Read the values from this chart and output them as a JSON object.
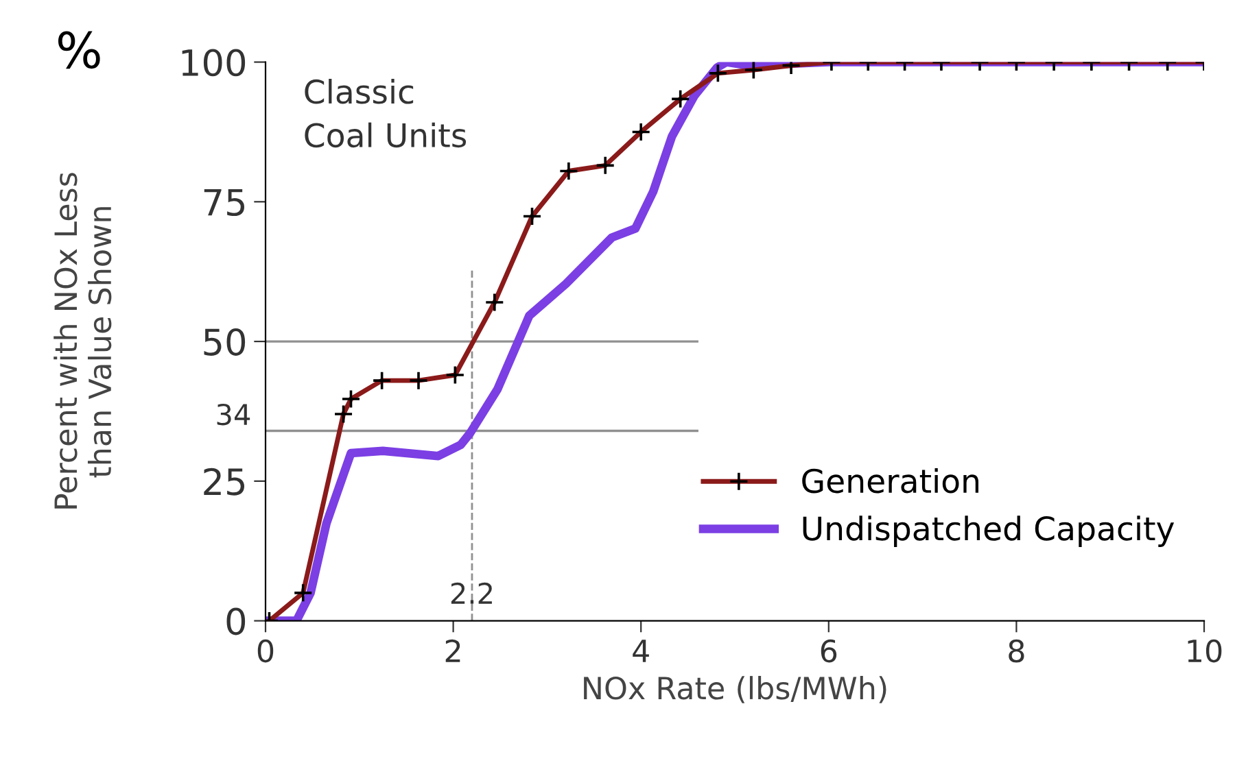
{
  "chart_data": {
    "type": "line",
    "xlabel": "NOx Rate (lbs/MWh)",
    "ylabel": "Percent with NOx Less\nthan Value Shown",
    "annotations": [
      "%",
      "Classic\nCoal Units"
    ],
    "xlim": [
      0,
      10
    ],
    "xticks": [
      0,
      2,
      4,
      6,
      8,
      10
    ],
    "ylim": [
      0,
      100
    ],
    "yticks": [
      0,
      25,
      50,
      75,
      100
    ],
    "grid": false,
    "legend": "bottom right",
    "ref_lines": [
      {
        "axis": "y",
        "value": 50,
        "label": null,
        "color": "#909090",
        "line_style": "solid"
      },
      {
        "axis": "y",
        "value": 34,
        "label": "34",
        "color": "#909090",
        "line_style": "solid"
      },
      {
        "axis": "x",
        "value": 2.2,
        "label": "2.2",
        "color": "#909090",
        "line_style": "dashed"
      }
    ],
    "series": [
      {
        "name": "Generation",
        "color": "#8b1a1a",
        "marker": "cross",
        "x": [
          0.04,
          0.4,
          0.83,
          0.91,
          1.24,
          1.63,
          2.02,
          2.44,
          2.84,
          3.23,
          3.62,
          4.0,
          4.42,
          4.82,
          5.2,
          5.6,
          6.03,
          6.42,
          6.81,
          7.2,
          7.61,
          8.0,
          8.4,
          8.8,
          9.2,
          9.61,
          10.0
        ],
        "values": [
          0,
          5,
          37,
          39.7,
          43,
          43,
          44,
          57,
          72.4,
          80.5,
          81.5,
          87.5,
          93.4,
          98,
          98.6,
          99.4,
          100,
          100,
          100,
          100,
          100,
          100,
          100,
          100,
          100,
          100,
          100
        ]
      },
      {
        "name": "Undispatched Capacity",
        "color": "#7b3fe4",
        "marker": "none",
        "x": [
          0.04,
          0.33,
          0.48,
          0.65,
          0.91,
          1.25,
          1.84,
          2.08,
          2.18,
          2.47,
          2.81,
          3.2,
          3.69,
          3.94,
          4.13,
          4.33,
          4.57,
          4.81,
          4.91,
          5.15,
          6.0,
          10.0
        ],
        "values": [
          0,
          0,
          5,
          17.5,
          30,
          30.4,
          29.5,
          31.5,
          33.6,
          41.4,
          54.6,
          60.3,
          68.6,
          70.2,
          76.8,
          86.7,
          94,
          99,
          100,
          99.4,
          100,
          100
        ]
      }
    ]
  }
}
